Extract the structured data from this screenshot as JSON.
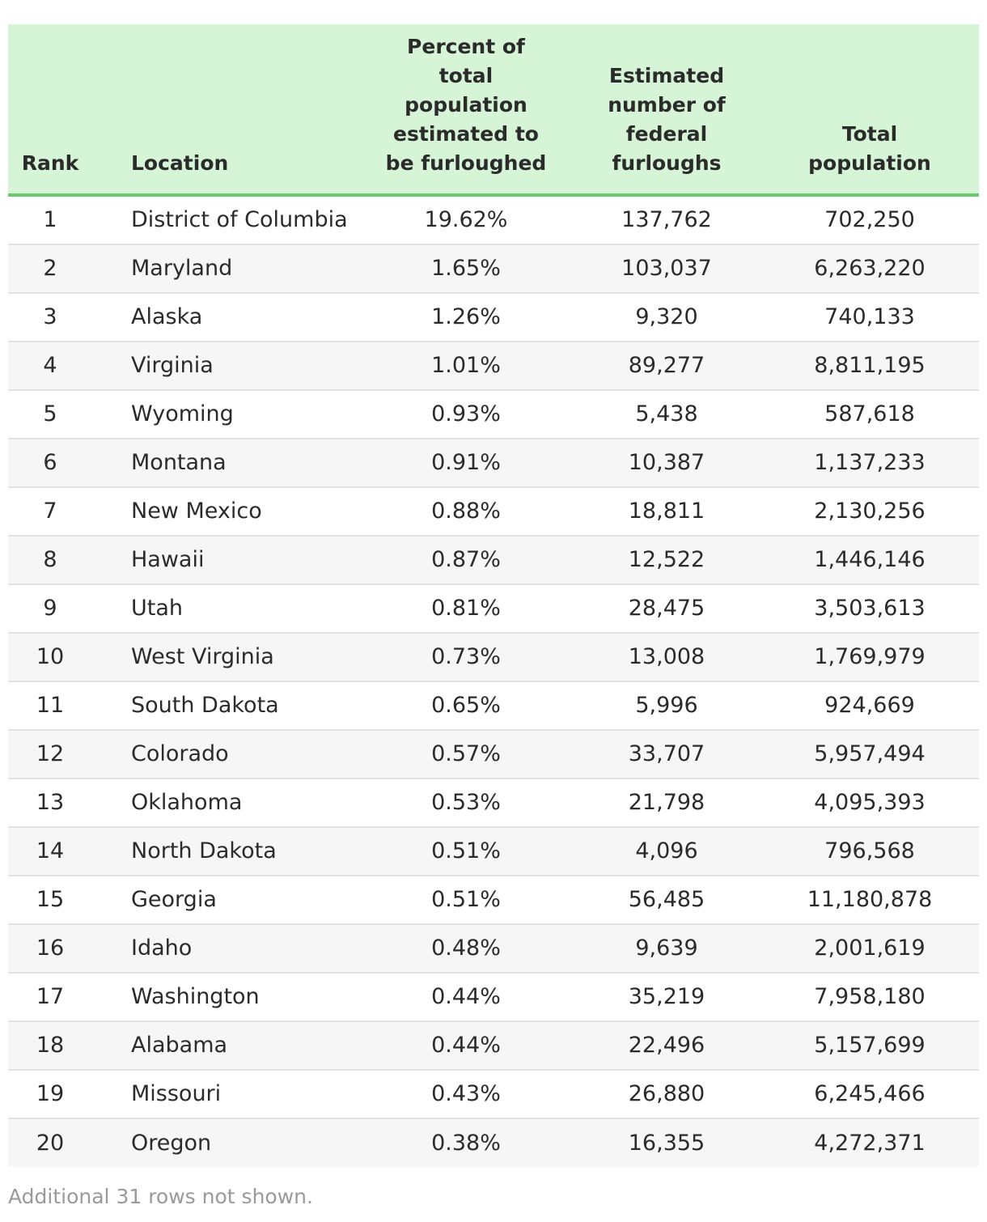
{
  "table": {
    "headers": {
      "rank": "Rank",
      "location": "Location",
      "percent": [
        "Percent of",
        "total",
        "population",
        "estimated to",
        "be furloughed"
      ],
      "federal": [
        "Estimated",
        "number of",
        "federal",
        "furloughs"
      ],
      "population": [
        "Total",
        "population"
      ]
    },
    "rows": [
      {
        "rank": "1",
        "location": "District of Columbia",
        "percent": "19.62%",
        "federal": "137,762",
        "population": "702,250"
      },
      {
        "rank": "2",
        "location": "Maryland",
        "percent": "1.65%",
        "federal": "103,037",
        "population": "6,263,220"
      },
      {
        "rank": "3",
        "location": "Alaska",
        "percent": "1.26%",
        "federal": "9,320",
        "population": "740,133"
      },
      {
        "rank": "4",
        "location": "Virginia",
        "percent": "1.01%",
        "federal": "89,277",
        "population": "8,811,195"
      },
      {
        "rank": "5",
        "location": "Wyoming",
        "percent": "0.93%",
        "federal": "5,438",
        "population": "587,618"
      },
      {
        "rank": "6",
        "location": "Montana",
        "percent": "0.91%",
        "federal": "10,387",
        "population": "1,137,233"
      },
      {
        "rank": "7",
        "location": "New Mexico",
        "percent": "0.88%",
        "federal": "18,811",
        "population": "2,130,256"
      },
      {
        "rank": "8",
        "location": "Hawaii",
        "percent": "0.87%",
        "federal": "12,522",
        "population": "1,446,146"
      },
      {
        "rank": "9",
        "location": "Utah",
        "percent": "0.81%",
        "federal": "28,475",
        "population": "3,503,613"
      },
      {
        "rank": "10",
        "location": "West Virginia",
        "percent": "0.73%",
        "federal": "13,008",
        "population": "1,769,979"
      },
      {
        "rank": "11",
        "location": "South Dakota",
        "percent": "0.65%",
        "federal": "5,996",
        "population": "924,669"
      },
      {
        "rank": "12",
        "location": "Colorado",
        "percent": "0.57%",
        "federal": "33,707",
        "population": "5,957,494"
      },
      {
        "rank": "13",
        "location": "Oklahoma",
        "percent": "0.53%",
        "federal": "21,798",
        "population": "4,095,393"
      },
      {
        "rank": "14",
        "location": "North Dakota",
        "percent": "0.51%",
        "federal": "4,096",
        "population": "796,568"
      },
      {
        "rank": "15",
        "location": "Georgia",
        "percent": "0.51%",
        "federal": "56,485",
        "population": "11,180,878"
      },
      {
        "rank": "16",
        "location": "Idaho",
        "percent": "0.48%",
        "federal": "9,639",
        "population": "2,001,619"
      },
      {
        "rank": "17",
        "location": "Washington",
        "percent": "0.44%",
        "federal": "35,219",
        "population": "7,958,180"
      },
      {
        "rank": "18",
        "location": "Alabama",
        "percent": "0.44%",
        "federal": "22,496",
        "population": "5,157,699"
      },
      {
        "rank": "19",
        "location": "Missouri",
        "percent": "0.43%",
        "federal": "26,880",
        "population": "6,245,466"
      },
      {
        "rank": "20",
        "location": "Oregon",
        "percent": "0.38%",
        "federal": "16,355",
        "population": "4,272,371"
      }
    ]
  },
  "footnote": "Additional 31 rows not shown.",
  "colors": {
    "header_bg": "#d6f5d6",
    "header_rule": "#6cc86c",
    "row_alt": "#f6f6f6",
    "footnote": "#9a9a9a"
  }
}
